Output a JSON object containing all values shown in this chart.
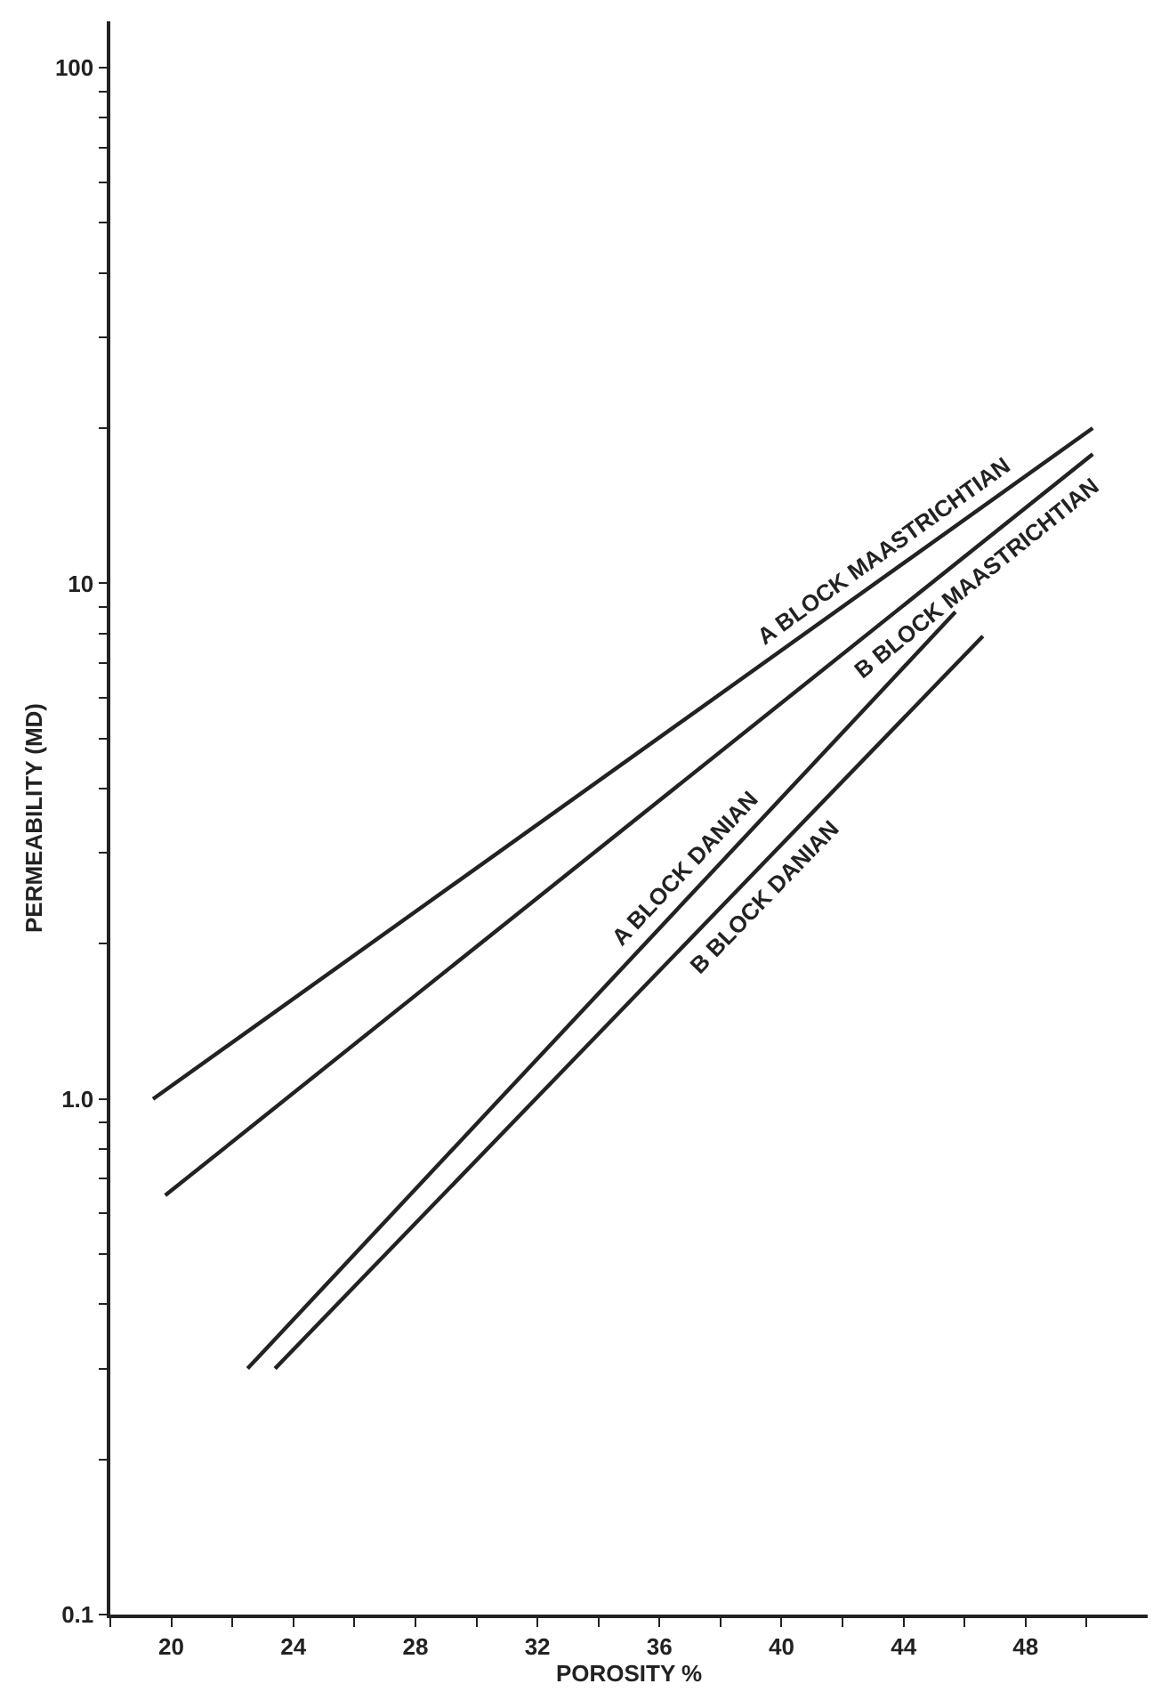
{
  "chart_data": {
    "type": "line",
    "xlabel": "POROSITY %",
    "ylabel": "PERMEABILITY (MD)",
    "log": "y",
    "marker": "none",
    "line_style": "solid",
    "xlim": [
      18,
      52
    ],
    "ylim": [
      0.1,
      123
    ],
    "xticks": [
      {
        "value": 18,
        "label": null
      },
      20,
      {
        "value": 22,
        "label": null
      },
      24,
      {
        "value": 26,
        "label": null
      },
      28,
      {
        "value": 30,
        "label": null
      },
      32,
      {
        "value": 34,
        "label": null
      },
      36,
      {
        "value": 38,
        "label": null
      },
      40,
      {
        "value": 42,
        "label": null
      },
      44,
      {
        "value": 46,
        "label": null
      },
      48,
      {
        "value": 50,
        "label": null
      }
    ],
    "yticks": [
      0.1,
      {
        "value": 0.2,
        "label": null
      },
      {
        "value": 0.3,
        "label": null
      },
      {
        "value": 0.4,
        "label": null
      },
      {
        "value": 0.5,
        "label": null
      },
      {
        "value": 0.6,
        "label": null
      },
      {
        "value": 0.7,
        "label": null
      },
      {
        "value": 0.8,
        "label": null
      },
      {
        "value": 0.9,
        "label": null
      },
      {
        "value": 1,
        "label": "1.0"
      },
      {
        "value": 2,
        "label": null
      },
      {
        "value": 3,
        "label": null
      },
      {
        "value": 4,
        "label": null
      },
      {
        "value": 5,
        "label": null
      },
      {
        "value": 6,
        "label": null
      },
      {
        "value": 7,
        "label": null
      },
      {
        "value": 8,
        "label": null
      },
      {
        "value": 9,
        "label": null
      },
      10,
      {
        "value": 20,
        "label": null
      },
      {
        "value": 30,
        "label": null
      },
      {
        "value": 40,
        "label": null
      },
      {
        "value": 50,
        "label": null
      },
      {
        "value": 60,
        "label": null
      },
      {
        "value": 70,
        "label": null
      },
      {
        "value": 80,
        "label": null
      },
      {
        "value": 90,
        "label": null
      },
      100
    ],
    "series": [
      {
        "color": "#222222",
        "x": [
          19.4,
          50.2
        ],
        "values": [
          1.0,
          20
        ]
      },
      {
        "color": "#222222",
        "x": [
          19.8,
          50.2
        ],
        "values": [
          0.65,
          17.8
        ]
      },
      {
        "color": "#222222",
        "x": [
          22.5,
          45.7
        ],
        "values": [
          0.3,
          8.8
        ]
      },
      {
        "color": "#222222",
        "x": [
          23.4,
          46.6
        ],
        "values": [
          0.3,
          7.9
        ]
      }
    ],
    "annotations": [
      {
        "text": "A BLOCK MAASTRICHTIAN",
        "x": 43.7,
        "y": 10.8
      },
      {
        "text": "B BLOCK MAASTRICHTIAN",
        "x": 46.0,
        "y": 11.0
      },
      {
        "text": "A BLOCK DANIAN",
        "x": 37.3,
        "y": 2.65
      },
      {
        "text": "B BLOCK DANIAN",
        "x": 39.0,
        "y": 2.62
      }
    ]
  }
}
